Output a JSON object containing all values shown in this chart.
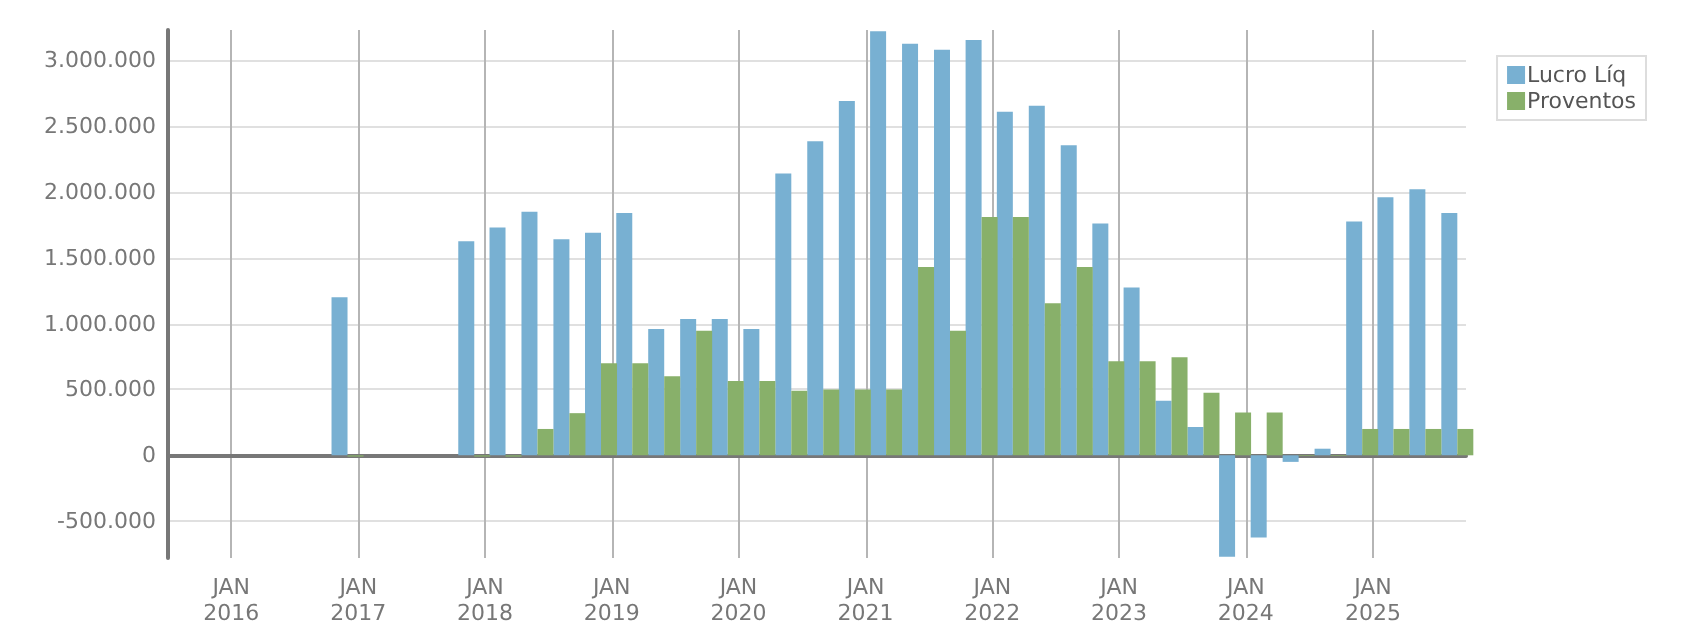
{
  "chart_data": {
    "type": "bar",
    "x": [
      "2016-12",
      "2017-12",
      "2018-03",
      "2018-06",
      "2018-09",
      "2018-12",
      "2019-03",
      "2019-06",
      "2019-09",
      "2019-12",
      "2020-03",
      "2020-06",
      "2020-09",
      "2020-12",
      "2021-03",
      "2021-06",
      "2021-09",
      "2021-12",
      "2022-03",
      "2022-06",
      "2022-09",
      "2022-12",
      "2023-03",
      "2023-06",
      "2023-09",
      "2023-12",
      "2024-03",
      "2024-06",
      "2024-09",
      "2024-12",
      "2025-03",
      "2025-06",
      "2025-09"
    ],
    "series": [
      {
        "name": "Lucro Líq",
        "color": "#78b0d2",
        "values": [
          1200000,
          1625000,
          1730000,
          1850000,
          1640000,
          1690000,
          1840000,
          960000,
          1035000,
          1035000,
          960000,
          2140000,
          2385000,
          2690000,
          3220000,
          3125000,
          3080000,
          3155000,
          2610000,
          2655000,
          2355000,
          1760000,
          1275000,
          415000,
          215000,
          -770000,
          -625000,
          -50000,
          50000,
          1775000,
          1960000,
          2020000,
          1840000
        ]
      },
      {
        "name": "Proventos",
        "color": "#88b06a",
        "values": [
          -10000,
          -10000,
          -10000,
          200000,
          320000,
          700000,
          700000,
          600000,
          945000,
          565000,
          565000,
          490000,
          500000,
          500000,
          500000,
          1430000,
          945000,
          1810000,
          1810000,
          1155000,
          1430000,
          715000,
          715000,
          745000,
          475000,
          325000,
          325000,
          -5000,
          -5000,
          200000,
          200000,
          200000,
          200000
        ]
      }
    ],
    "xlim": [
      "2015-07-03",
      "2025-09-26"
    ],
    "xticks": [
      {
        "value": "2016-01",
        "label": "JAN\n2016"
      },
      {
        "value": "2017-01",
        "label": "JAN\n2017"
      },
      {
        "value": "2018-01",
        "label": "JAN\n2018"
      },
      {
        "value": "2019-01",
        "label": "JAN\n2019"
      },
      {
        "value": "2020-01",
        "label": "JAN\n2020"
      },
      {
        "value": "2021-01",
        "label": "JAN\n2021"
      },
      {
        "value": "2022-01",
        "label": "JAN\n2022"
      },
      {
        "value": "2023-01",
        "label": "JAN\n2023"
      },
      {
        "value": "2024-01",
        "label": "JAN\n2024"
      },
      {
        "value": "2025-01",
        "label": "JAN\n2025"
      }
    ],
    "ylim": [
      -780000,
      3230000
    ],
    "yticks": [
      {
        "value": -500000,
        "label": "-500.000"
      },
      {
        "value": 0,
        "label": "0"
      },
      {
        "value": 500000,
        "label": "500.000"
      },
      {
        "value": 1000000,
        "label": "1.000.000"
      },
      {
        "value": 1500000,
        "label": "1.500.000"
      },
      {
        "value": 2000000,
        "label": "2.000.000"
      },
      {
        "value": 2500000,
        "label": "2.500.000"
      },
      {
        "value": 3000000,
        "label": "3.000.000"
      }
    ],
    "grid": true,
    "legend": "top right"
  }
}
